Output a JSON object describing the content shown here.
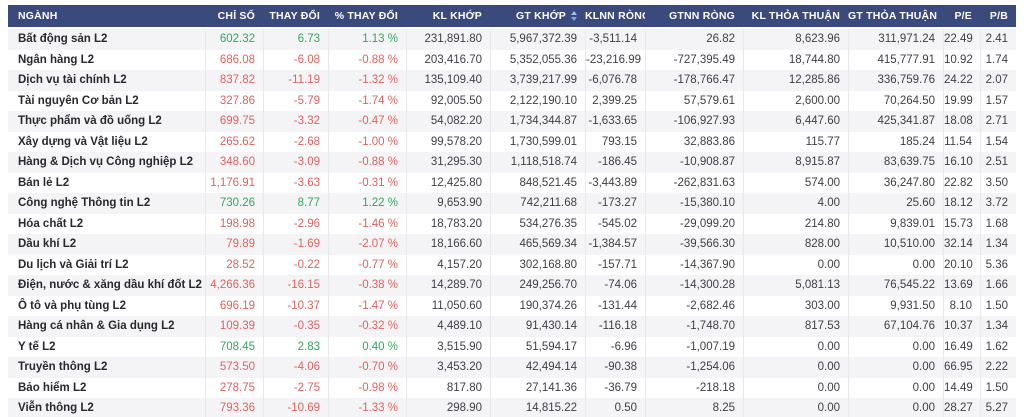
{
  "table": {
    "columns": [
      {
        "label": "NGÀNH"
      },
      {
        "label": "CHỈ SỐ"
      },
      {
        "label": "THAY ĐỔI"
      },
      {
        "label": "% THAY ĐỔI"
      },
      {
        "label": "KL KHỚP"
      },
      {
        "label": "GT KHỚP",
        "sorted": true
      },
      {
        "label": "KLNN RÒNG"
      },
      {
        "label": "GTNN RÒNG"
      },
      {
        "label": "KL THỎA THUẬN"
      },
      {
        "label": "GT THỎA THUẬN"
      },
      {
        "label": "P/E"
      },
      {
        "label": "P/B"
      }
    ],
    "rows": [
      {
        "name": "Bất động sản L2",
        "trend": "up",
        "values": [
          "602.32",
          "6.73",
          "1.13 %",
          "231,891.80",
          "5,967,372.39",
          "-3,511.14",
          "26.82",
          "8,623.96",
          "311,971.24",
          "22.49",
          "2.41"
        ]
      },
      {
        "name": "Ngân hàng L2",
        "trend": "down",
        "values": [
          "686.08",
          "-6.08",
          "-0.88 %",
          "203,416.70",
          "5,352,055.36",
          "-23,216.99",
          "-727,395.49",
          "18,744.80",
          "415,777.91",
          "10.92",
          "1.74"
        ]
      },
      {
        "name": "Dịch vụ tài chính L2",
        "trend": "down",
        "values": [
          "837.82",
          "-11.19",
          "-1.32 %",
          "135,109.40",
          "3,739,217.99",
          "-6,076.78",
          "-178,766.47",
          "12,285.86",
          "336,759.76",
          "24.22",
          "2.07"
        ]
      },
      {
        "name": "Tài nguyên Cơ bản L2",
        "trend": "down",
        "values": [
          "327.86",
          "-5.79",
          "-1.74 %",
          "92,005.50",
          "2,122,190.10",
          "2,399.25",
          "57,579.61",
          "2,600.00",
          "70,264.50",
          "19.99",
          "1.57"
        ]
      },
      {
        "name": "Thực phẩm và đồ uống L2",
        "trend": "down",
        "values": [
          "699.75",
          "-3.32",
          "-0.47 %",
          "54,082.20",
          "1,734,344.87",
          "-1,633.65",
          "-106,927.93",
          "6,447.60",
          "425,341.87",
          "18.08",
          "2.71"
        ]
      },
      {
        "name": "Xây dựng và Vật liệu L2",
        "trend": "down",
        "values": [
          "265.62",
          "-2.68",
          "-1.00 %",
          "99,578.20",
          "1,730,599.01",
          "793.15",
          "32,883.86",
          "115.77",
          "185.24",
          "11.54",
          "1.54"
        ]
      },
      {
        "name": "Hàng & Dịch vụ Công nghiệp L2",
        "trend": "down",
        "values": [
          "348.60",
          "-3.09",
          "-0.88 %",
          "31,295.30",
          "1,118,518.74",
          "-186.45",
          "-10,908.87",
          "8,915.87",
          "83,639.75",
          "16.10",
          "2.51"
        ]
      },
      {
        "name": "Bán lẻ L2",
        "trend": "down",
        "values": [
          "1,176.91",
          "-3.63",
          "-0.31 %",
          "12,425.80",
          "848,521.45",
          "-3,443.89",
          "-262,831.63",
          "574.00",
          "36,247.80",
          "22.82",
          "3.50"
        ]
      },
      {
        "name": "Công nghệ Thông tin L2",
        "trend": "up",
        "values": [
          "730.26",
          "8.77",
          "1.22 %",
          "9,653.90",
          "742,211.68",
          "-173.27",
          "-15,380.10",
          "4.00",
          "25.60",
          "18.12",
          "3.72"
        ]
      },
      {
        "name": "Hóa chất L2",
        "trend": "down",
        "values": [
          "198.98",
          "-2.96",
          "-1.46 %",
          "18,783.20",
          "534,276.35",
          "-545.02",
          "-29,099.20",
          "214.80",
          "9,839.01",
          "15.73",
          "1.68"
        ]
      },
      {
        "name": "Dầu khí L2",
        "trend": "down",
        "values": [
          "79.89",
          "-1.69",
          "-2.07 %",
          "18,166.60",
          "465,569.34",
          "-1,384.57",
          "-39,566.30",
          "828.00",
          "10,510.00",
          "32.14",
          "1.34"
        ]
      },
      {
        "name": "Du lịch và Giải trí L2",
        "trend": "down",
        "values": [
          "28.52",
          "-0.22",
          "-0.77 %",
          "4,157.20",
          "302,168.80",
          "-157.71",
          "-14,367.90",
          "0.00",
          "0.00",
          "20.10",
          "5.36"
        ]
      },
      {
        "name": "Điện, nước & xăng dầu khí đốt L2",
        "trend": "down",
        "values": [
          "4,266.36",
          "-16.15",
          "-0.38 %",
          "14,289.70",
          "249,256.70",
          "-74.06",
          "-14,300.28",
          "5,081.13",
          "76,545.22",
          "13.69",
          "1.66"
        ]
      },
      {
        "name": "Ô tô và phụ tùng L2",
        "trend": "down",
        "values": [
          "696.19",
          "-10.37",
          "-1.47 %",
          "11,050.60",
          "190,374.26",
          "-131.44",
          "-2,682.46",
          "303.00",
          "9,931.50",
          "8.10",
          "1.50"
        ]
      },
      {
        "name": "Hàng cá nhân & Gia dụng L2",
        "trend": "down",
        "values": [
          "109.39",
          "-0.35",
          "-0.32 %",
          "4,489.10",
          "91,430.14",
          "-116.18",
          "-1,748.70",
          "817.53",
          "67,104.76",
          "10.37",
          "1.34"
        ]
      },
      {
        "name": "Y tế L2",
        "trend": "up",
        "values": [
          "708.45",
          "2.83",
          "0.40 %",
          "3,515.90",
          "51,594.17",
          "-6.96",
          "-1,007.19",
          "0.00",
          "0.00",
          "16.49",
          "1.62"
        ]
      },
      {
        "name": "Truyền thông L2",
        "trend": "down",
        "values": [
          "573.50",
          "-4.06",
          "-0.70 %",
          "3,453.20",
          "42,494.14",
          "-90.38",
          "-1,254.06",
          "0.00",
          "0.00",
          "66.95",
          "2.22"
        ]
      },
      {
        "name": "Bảo hiểm L2",
        "trend": "down",
        "values": [
          "278.75",
          "-2.75",
          "-0.98 %",
          "817.80",
          "27,141.36",
          "-36.79",
          "-218.18",
          "0.00",
          "0.00",
          "14.49",
          "1.50"
        ]
      },
      {
        "name": "Viễn thông L2",
        "trend": "down",
        "values": [
          "793.36",
          "-10.69",
          "-1.33 %",
          "298.90",
          "14,815.22",
          "0.50",
          "8.25",
          "0.00",
          "0.00",
          "28.27",
          "5.27"
        ]
      }
    ]
  },
  "colors": {
    "up": "#36a35f",
    "down": "#dd625e",
    "header_bg": "#3a4a7c",
    "stripe_row": "#f4f4f7"
  }
}
